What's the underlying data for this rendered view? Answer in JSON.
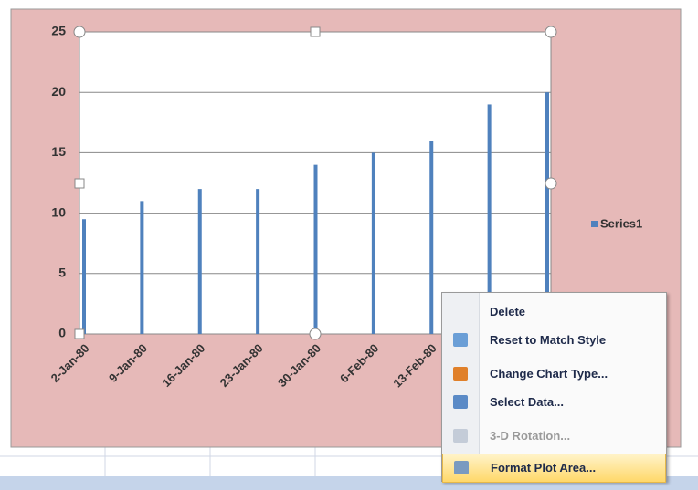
{
  "chart_data": {
    "type": "bar",
    "categories": [
      "2-Jan-80",
      "9-Jan-80",
      "16-Jan-80",
      "23-Jan-80",
      "30-Jan-80",
      "6-Feb-80",
      "13-Feb-80",
      null,
      null
    ],
    "series": [
      {
        "name": "Series1",
        "color": "#4f81bd",
        "values": [
          9.5,
          11,
          12,
          12,
          14,
          15,
          16,
          19,
          20
        ]
      }
    ],
    "ylim": [
      0,
      25
    ],
    "yticks": [
      0,
      5,
      10,
      15,
      20,
      25
    ],
    "grid": true,
    "legend": "right"
  },
  "context_menu": {
    "items": [
      "Delete",
      "Reset to Match Style",
      "Change Chart Type...",
      "Select Data...",
      "3-D Rotation...",
      "Format Plot Area..."
    ]
  }
}
